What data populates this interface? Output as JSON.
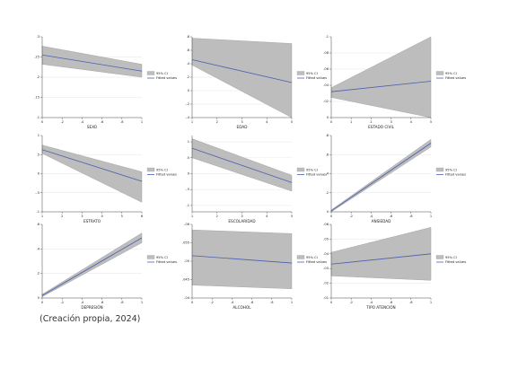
{
  "legend": {
    "ci_label": "95% CI",
    "fit_label": "Fitted values"
  },
  "colors": {
    "band": "#bdbdbd",
    "band_edge": "#9a9a9a",
    "line": "#4a5fb0",
    "panel_bg": "#ffffff",
    "grid": "#e6e6e6"
  },
  "source": "(Creación propia, 2024)",
  "chart_data": [
    {
      "type": "line",
      "xlabel": "SEXO",
      "xlim": [
        0,
        1
      ],
      "ylim": [
        0.1,
        0.3
      ],
      "xticks": [
        "0",
        ".2",
        ".4",
        ".6",
        ".8",
        "1"
      ],
      "yticks": [
        ".1",
        ".15",
        ".2",
        ".25",
        ".3"
      ],
      "x": [
        0,
        1
      ],
      "fit": [
        0.255,
        0.215
      ],
      "lower": [
        0.232,
        0.2
      ],
      "upper": [
        0.277,
        0.232
      ]
    },
    {
      "type": "line",
      "xlabel": "EDAD",
      "xlim": [
        1,
        5
      ],
      "ylim": [
        -0.4,
        0.8
      ],
      "xticks": [
        "1",
        "2",
        "3",
        "4",
        "5"
      ],
      "yticks": [
        "-.4",
        "-.2",
        "0",
        ".2",
        ".4",
        ".6",
        ".8"
      ],
      "x": [
        1,
        5
      ],
      "fit": [
        0.46,
        0.12
      ],
      "lower": [
        0.38,
        -0.4
      ],
      "upper": [
        0.78,
        0.7
      ]
    },
    {
      "type": "line",
      "xlabel": "ESTADO CIVIL",
      "xlim": [
        0,
        5
      ],
      "ylim": [
        0.0,
        0.1
      ],
      "xticks": [
        "0",
        "1",
        "2",
        "3",
        "4",
        "5"
      ],
      "yticks": [
        "0",
        ".02",
        ".04",
        ".06",
        ".08",
        ".1"
      ],
      "x": [
        0,
        5
      ],
      "fit": [
        0.032,
        0.045
      ],
      "lower": [
        0.025,
        0.0
      ],
      "upper": [
        0.037,
        0.1
      ]
    },
    {
      "type": "line",
      "xlabel": "ESTRATO",
      "xlim": [
        1,
        6
      ],
      "ylim": [
        -1,
        1
      ],
      "xticks": [
        "1",
        "2",
        "3",
        "4",
        "5",
        "6"
      ],
      "yticks": [
        "-1",
        "-.5",
        "0",
        ".5",
        "1"
      ],
      "x": [
        1,
        6
      ],
      "fit": [
        0.63,
        -0.2
      ],
      "lower": [
        0.53,
        -0.75
      ],
      "upper": [
        0.75,
        0.05
      ]
    },
    {
      "type": "line",
      "xlabel": "ESCOLARIDAD",
      "xlim": [
        1,
        5
      ],
      "ylim": [
        -1.2,
        1.2
      ],
      "xticks": [
        "1",
        "2",
        "3",
        "4",
        "5"
      ],
      "yticks": [
        "-1",
        "-.5",
        "0",
        ".5",
        "1"
      ],
      "x": [
        1,
        5
      ],
      "fit": [
        0.8,
        -0.28
      ],
      "lower": [
        0.5,
        -0.55
      ],
      "upper": [
        1.1,
        -0.05
      ]
    },
    {
      "type": "line",
      "xlabel": "ANSIEDAD",
      "xlim": [
        0,
        1
      ],
      "ylim": [
        0,
        0.8
      ],
      "xticks": [
        "0",
        ".2",
        ".4",
        ".6",
        ".8",
        "1"
      ],
      "yticks": [
        "0",
        ".2",
        ".4",
        ".6",
        ".8"
      ],
      "x": [
        0,
        1
      ],
      "fit": [
        0.01,
        0.72
      ],
      "lower": [
        0.0,
        0.68
      ],
      "upper": [
        0.02,
        0.76
      ]
    },
    {
      "type": "line",
      "xlabel": "DEPRESIÓN",
      "xlim": [
        0,
        1
      ],
      "ylim": [
        0,
        0.6
      ],
      "xticks": [
        "0",
        ".2",
        ".4",
        ".6",
        ".8",
        "1"
      ],
      "yticks": [
        "0",
        ".2",
        ".4",
        ".6"
      ],
      "x": [
        0,
        1
      ],
      "fit": [
        0.02,
        0.49
      ],
      "lower": [
        0.01,
        0.45
      ],
      "upper": [
        0.03,
        0.53
      ]
    },
    {
      "type": "line",
      "xlabel": "ALCOHOL",
      "xlim": [
        0,
        1
      ],
      "ylim": [
        0.04,
        0.06
      ],
      "xticks": [
        "0",
        ".2",
        ".4",
        ".6",
        ".8",
        "1"
      ],
      "yticks": [
        ".04",
        ".045",
        ".05",
        ".055",
        ".06"
      ],
      "x": [
        0,
        1
      ],
      "fit": [
        0.0515,
        0.0495
      ],
      "lower": [
        0.0435,
        0.0425
      ],
      "upper": [
        0.0585,
        0.0575
      ]
    },
    {
      "type": "line",
      "xlabel": "TIPO ATENCIÓN",
      "xlim": [
        0,
        1
      ],
      "ylim": [
        0.01,
        0.06
      ],
      "xticks": [
        "0",
        ".2",
        ".4",
        ".6",
        ".8",
        "1"
      ],
      "yticks": [
        ".01",
        ".02",
        ".03",
        ".04",
        ".05",
        ".06"
      ],
      "x": [
        0,
        1
      ],
      "fit": [
        0.033,
        0.04
      ],
      "lower": [
        0.025,
        0.022
      ],
      "upper": [
        0.041,
        0.058
      ]
    }
  ]
}
